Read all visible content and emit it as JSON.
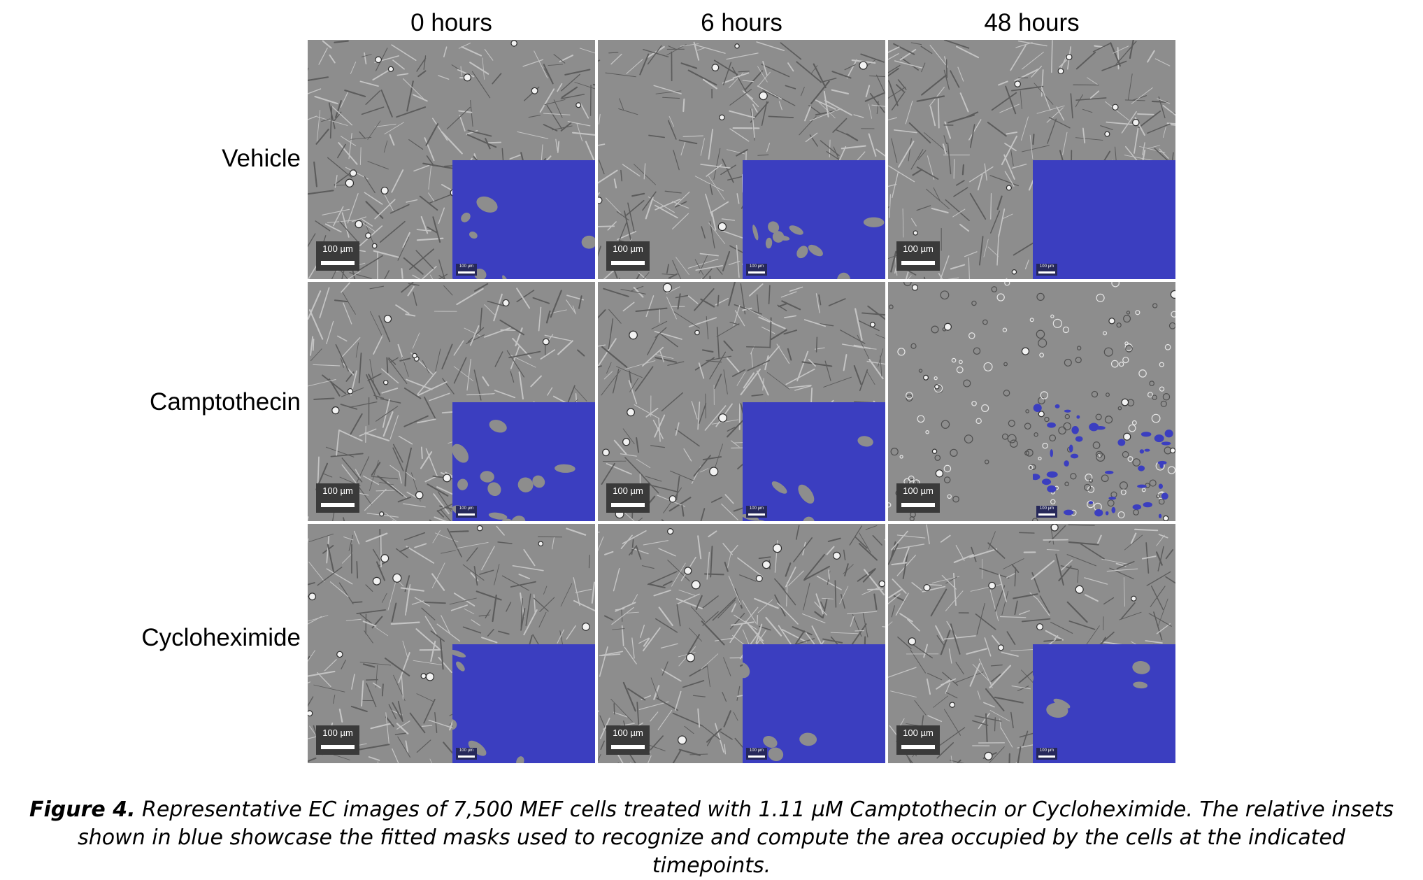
{
  "columns": [
    "0 hours",
    "6 hours",
    "48 hours"
  ],
  "rows": [
    "Vehicle",
    "Camptothecin",
    "Cycloheximide"
  ],
  "panels": [
    [
      {
        "scalebar": "100 µm",
        "inset_scalebar": "100 µm",
        "mask_coverage": 0.7
      },
      {
        "scalebar": "100 µm",
        "inset_scalebar": "100 µm",
        "mask_coverage": 0.68
      },
      {
        "scalebar": "100 µm",
        "inset_scalebar": "100 µm",
        "mask_coverage": 1.0
      }
    ],
    [
      {
        "scalebar": "100 µm",
        "inset_scalebar": "100 µm",
        "mask_coverage": 0.68
      },
      {
        "scalebar": "100 µm",
        "inset_scalebar": "100 µm",
        "mask_coverage": 0.8
      },
      {
        "scalebar": "100 µm",
        "inset_scalebar": "100 µm",
        "mask_coverage": 0.18
      }
    ],
    [
      {
        "scalebar": "100 µm",
        "inset_scalebar": "100 µm",
        "mask_coverage": 0.72
      },
      {
        "scalebar": "100 µm",
        "inset_scalebar": "100 µm",
        "mask_coverage": 0.76
      },
      {
        "scalebar": "100 µm",
        "inset_scalebar": "100 µm",
        "mask_coverage": 0.74
      }
    ]
  ],
  "colors": {
    "mask_blue": "#3b3ec0",
    "phase_gray": "#8d8d8d"
  },
  "caption": {
    "label": "Figure 4.",
    "text": " Representative EC images of 7,500 MEF cells treated with 1.11 µM Camptothecin or Cycloheximide. The relative insets shown in blue showcase the fitted masks used to recognize and compute the area occupied by the cells at the indicated timepoints."
  }
}
